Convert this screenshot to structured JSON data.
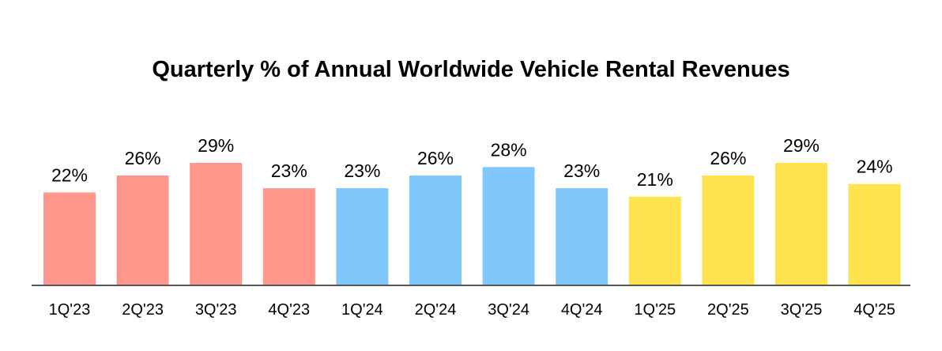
{
  "chart_data": {
    "type": "bar",
    "title": "Quarterly % of Annual Worldwide Vehicle Rental Revenues",
    "xlabel": "",
    "ylabel": "",
    "ylim": [
      0,
      29
    ],
    "grid": false,
    "categories": [
      "1Q'23",
      "2Q'23",
      "3Q'23",
      "4Q'23",
      "1Q'24",
      "2Q'24",
      "3Q'24",
      "4Q'24",
      "1Q'25",
      "2Q'25",
      "3Q'25",
      "4Q'25"
    ],
    "values": [
      22,
      26,
      29,
      23,
      23,
      26,
      28,
      23,
      21,
      26,
      29,
      24
    ],
    "value_labels": [
      "22%",
      "26%",
      "29%",
      "23%",
      "23%",
      "26%",
      "28%",
      "23%",
      "21%",
      "26%",
      "29%",
      "24%"
    ],
    "colors": [
      "#FF968C",
      "#FF968C",
      "#FF968C",
      "#FF968C",
      "#80C8FC",
      "#80C8FC",
      "#80C8FC",
      "#80C8FC",
      "#FFE450",
      "#FFE450",
      "#FFE450",
      "#FFE450"
    ],
    "axis_color": "#555555"
  }
}
